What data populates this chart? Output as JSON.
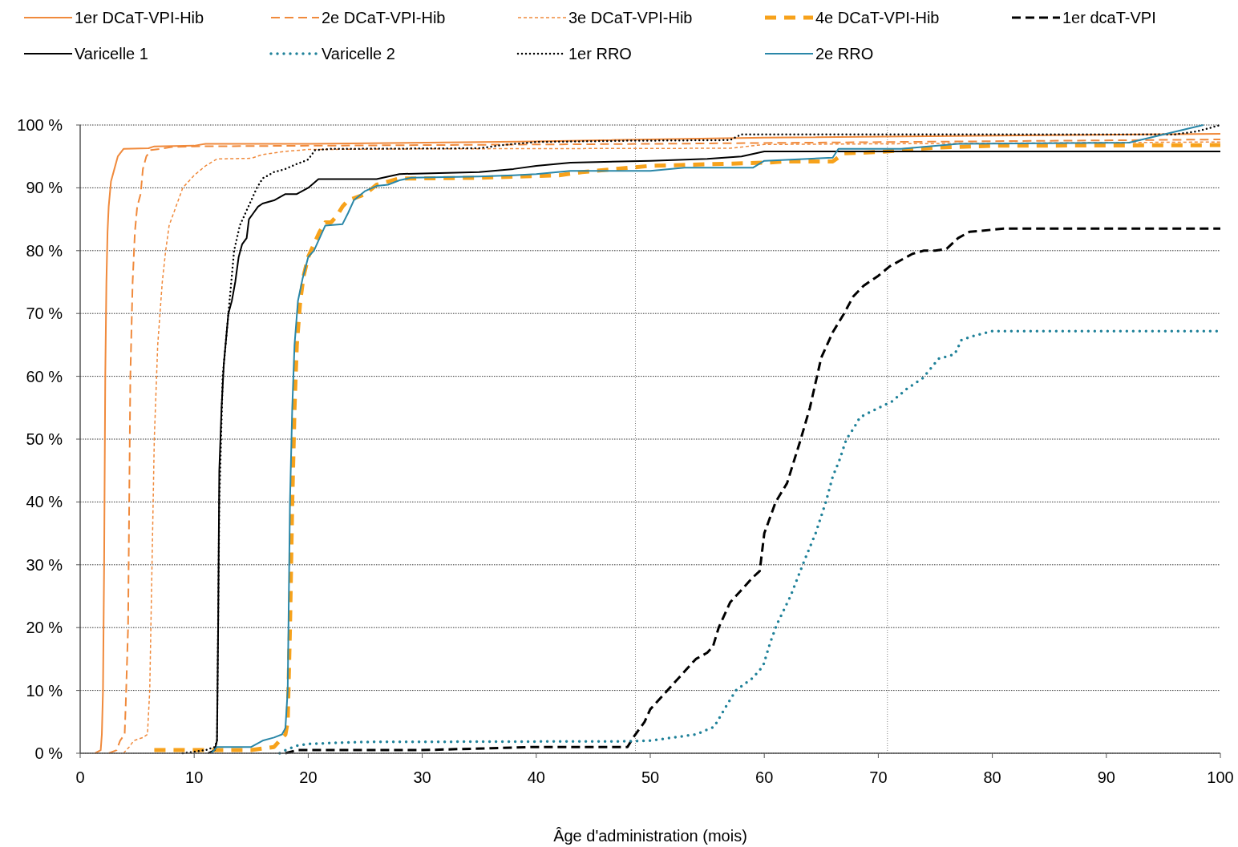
{
  "chart_data": {
    "type": "line",
    "xlabel": "Âge d'administration (mois)",
    "xlim": [
      0,
      100
    ],
    "xticks": [
      0,
      10,
      20,
      30,
      40,
      50,
      60,
      70,
      80,
      90,
      100
    ],
    "ylim": [
      0,
      100
    ],
    "yticks": [
      {
        "value": 0,
        "label": "0 %"
      },
      {
        "value": 10,
        "label": "10 %"
      },
      {
        "value": 20,
        "label": "20 %"
      },
      {
        "value": 30,
        "label": "30 %"
      },
      {
        "value": 40,
        "label": "40 %"
      },
      {
        "value": 50,
        "label": "50 %"
      },
      {
        "value": 60,
        "label": "60 %"
      },
      {
        "value": 70,
        "label": "70 %"
      },
      {
        "value": 80,
        "label": "80 %"
      },
      {
        "value": 90,
        "label": "90 %"
      },
      {
        "value": 100,
        "label": "100 %"
      }
    ],
    "grid": "y",
    "legend": "top",
    "ref_lines": [
      {
        "axis": "x",
        "value": 48.7,
        "color": "#808080",
        "line_style": "dotted"
      },
      {
        "axis": "x",
        "value": 70.8,
        "color": "#808080",
        "line_style": "dotted"
      }
    ],
    "series": [
      {
        "name": "1er DCaT-VPI-Hib",
        "color": "#f08a3c",
        "line_style": "solid",
        "x": [
          1.3,
          1.8,
          1.9,
          2.0,
          2.1,
          2.2,
          2.3,
          2.4,
          2.5,
          2.7,
          3.0,
          3.3,
          3.8,
          6,
          6.5,
          10,
          11,
          20,
          40,
          60,
          100
        ],
        "values": [
          0,
          0.5,
          3,
          10,
          30,
          60,
          75,
          83,
          87,
          91,
          93,
          95,
          96.2,
          96.3,
          96.6,
          96.7,
          97,
          97,
          97.4,
          98,
          98.6
        ]
      },
      {
        "name": "2e DCaT-VPI-Hib",
        "color": "#f08a3c",
        "line_style": "dashed",
        "x": [
          2.5,
          3.2,
          3.5,
          3.9,
          4.0,
          4.2,
          4.3,
          4.4,
          4.6,
          4.8,
          5.0,
          5.3,
          5.5,
          5.8,
          6.2,
          7,
          8,
          10,
          20,
          50,
          100
        ],
        "values": [
          0,
          0.5,
          2,
          3,
          8,
          20,
          40,
          60,
          75,
          83,
          87,
          89,
          93,
          95,
          96,
          96.2,
          96.5,
          96.6,
          96.7,
          97,
          97.7
        ]
      },
      {
        "name": "3e DCaT-VPI-Hib",
        "color": "#f08a3c",
        "line_style": "dashed",
        "x": [
          3.8,
          4.3,
          4.7,
          5.5,
          5.9,
          6.1,
          6.3,
          6.5,
          6.8,
          7.2,
          7.5,
          7.8,
          8.2,
          9,
          10,
          11,
          12,
          15,
          16,
          18,
          20,
          30,
          57,
          60,
          70,
          100
        ],
        "values": [
          0,
          1,
          2,
          2.5,
          3,
          10,
          30,
          50,
          65,
          75,
          80,
          84,
          86,
          90,
          92,
          93.5,
          94.6,
          94.7,
          95.3,
          95.8,
          96.1,
          96.2,
          96.3,
          96.9,
          97,
          97.3
        ]
      },
      {
        "name": "4e DCaT-VPI-Hib",
        "color": "#f7a21b",
        "line_style": "dashed",
        "x": [
          6.5,
          9,
          12,
          15,
          17,
          17.5,
          18,
          18.2,
          18.4,
          18.6,
          18.8,
          19,
          19.3,
          19.6,
          20,
          20.5,
          21,
          21.5,
          22,
          22.5,
          23,
          23.5,
          25,
          26,
          27,
          28,
          30,
          35,
          40,
          42,
          44,
          50,
          60,
          62,
          66,
          67,
          70,
          75,
          80,
          100
        ],
        "values": [
          0.5,
          0.5,
          0.5,
          0.5,
          1,
          2,
          3,
          5,
          20,
          40,
          55,
          65,
          72,
          76,
          79,
          81,
          83,
          84.5,
          84.5,
          85.5,
          87,
          88,
          89,
          90.5,
          91,
          91.5,
          91.5,
          91.6,
          91.9,
          92,
          92.5,
          93.5,
          94,
          94.2,
          94.2,
          95.5,
          95.7,
          96.4,
          96.7,
          96.8
        ]
      },
      {
        "name": "1er dcaT-VPI",
        "color": "#000000",
        "line_style": "dashed",
        "x": [
          18,
          19,
          30,
          36,
          40,
          48,
          48.5,
          49.5,
          50,
          51,
          52,
          53,
          54,
          55,
          55.5,
          56,
          57,
          58,
          59,
          59.6,
          60,
          61,
          62,
          63.2,
          64,
          64.5,
          65,
          66,
          67,
          67.8,
          68.7,
          70,
          71,
          72,
          73,
          74,
          75,
          76,
          77,
          78,
          81,
          100
        ],
        "values": [
          0,
          0.5,
          0.5,
          0.8,
          1,
          1,
          2.5,
          5,
          7,
          9,
          11,
          13,
          15,
          16,
          17,
          20,
          24,
          26,
          28,
          29,
          35,
          40,
          43,
          50,
          55,
          59,
          63,
          67,
          70,
          72.7,
          74.4,
          76,
          77.5,
          78.5,
          79.5,
          80,
          80,
          80.3,
          82,
          83,
          83.5,
          83.5
        ]
      },
      {
        "name": "Varicelle 1",
        "color": "#000000",
        "line_style": "solid",
        "x": [
          11.2,
          11.8,
          12,
          12.1,
          12.2,
          12.4,
          12.6,
          13,
          13.3,
          13.6,
          13.9,
          14.2,
          14.6,
          14.8,
          15.2,
          15.6,
          16,
          17,
          18,
          19,
          20,
          20.9,
          26,
          28,
          35,
          38,
          40,
          43,
          50,
          55,
          58,
          60,
          100
        ],
        "values": [
          0,
          0.5,
          2,
          20,
          45,
          55,
          62,
          70,
          72,
          75,
          79,
          81,
          82,
          85,
          86,
          87,
          87.5,
          88,
          89,
          89,
          90,
          91.4,
          91.4,
          92.2,
          92.5,
          93,
          93.5,
          94,
          94.3,
          94.6,
          95,
          95.8,
          95.8
        ]
      },
      {
        "name": "Varicelle 2",
        "color": "#1f8199",
        "line_style": "dotted",
        "x": [
          17.5,
          18,
          19,
          20,
          25,
          48,
          50,
          52,
          54,
          55.6,
          56.5,
          57.5,
          59,
          59.9,
          60.5,
          61.1,
          62.3,
          63.5,
          64.5,
          65.4,
          66,
          66.6,
          67.2,
          67.8,
          68.4,
          69.5,
          71.2,
          72.5,
          73.9,
          75.3,
          76.7,
          77.3,
          78.5,
          80,
          100
        ],
        "values": [
          0,
          0.5,
          1.2,
          1.5,
          1.8,
          1.9,
          2,
          2.5,
          3,
          4.2,
          7,
          10,
          12,
          13.9,
          17.5,
          20.5,
          25,
          30.6,
          35,
          40,
          44,
          46.7,
          50,
          51.6,
          53.5,
          54.5,
          56,
          58,
          59.7,
          62.8,
          63.5,
          65.8,
          66.5,
          67.2,
          67.2
        ]
      },
      {
        "name": "1er RRO",
        "color": "#000000",
        "line_style": "dotted",
        "x": [
          9,
          11,
          11.8,
          12,
          12.2,
          12.5,
          13,
          13.5,
          14,
          15,
          15.5,
          16,
          17,
          18,
          19,
          20,
          20.6,
          22,
          35,
          37,
          40,
          48,
          57,
          58,
          96,
          98,
          100
        ],
        "values": [
          0,
          0.5,
          1,
          2,
          40,
          60,
          70,
          80,
          84,
          88,
          90,
          91.5,
          92.5,
          93,
          93.8,
          94.5,
          96,
          96.2,
          96.3,
          96.8,
          97.3,
          97.5,
          97.6,
          98.5,
          98.5,
          99,
          100
        ]
      },
      {
        "name": "2e RRO",
        "color": "#2a87a8",
        "line_style": "solid",
        "x": [
          11.5,
          12,
          15,
          16,
          17,
          17.7,
          18,
          18.2,
          18.4,
          18.6,
          18.8,
          19.1,
          19.5,
          20,
          20.5,
          21,
          21.5,
          23,
          23.5,
          24,
          25,
          26,
          27,
          28,
          29,
          35,
          38,
          40,
          43,
          50,
          53,
          59,
          60,
          66,
          66.5,
          72,
          77,
          92,
          98.5
        ],
        "values": [
          0,
          1,
          1,
          2,
          2.5,
          3,
          4,
          10,
          40,
          55,
          65,
          72,
          75.5,
          79,
          80,
          82,
          84,
          84.2,
          86,
          88,
          89.5,
          90.3,
          90.5,
          91.2,
          91.6,
          91.8,
          92,
          92.2,
          92.7,
          92.7,
          93.2,
          93.2,
          94.3,
          94.8,
          96.2,
          96.2,
          97,
          97.2,
          100
        ]
      }
    ]
  }
}
